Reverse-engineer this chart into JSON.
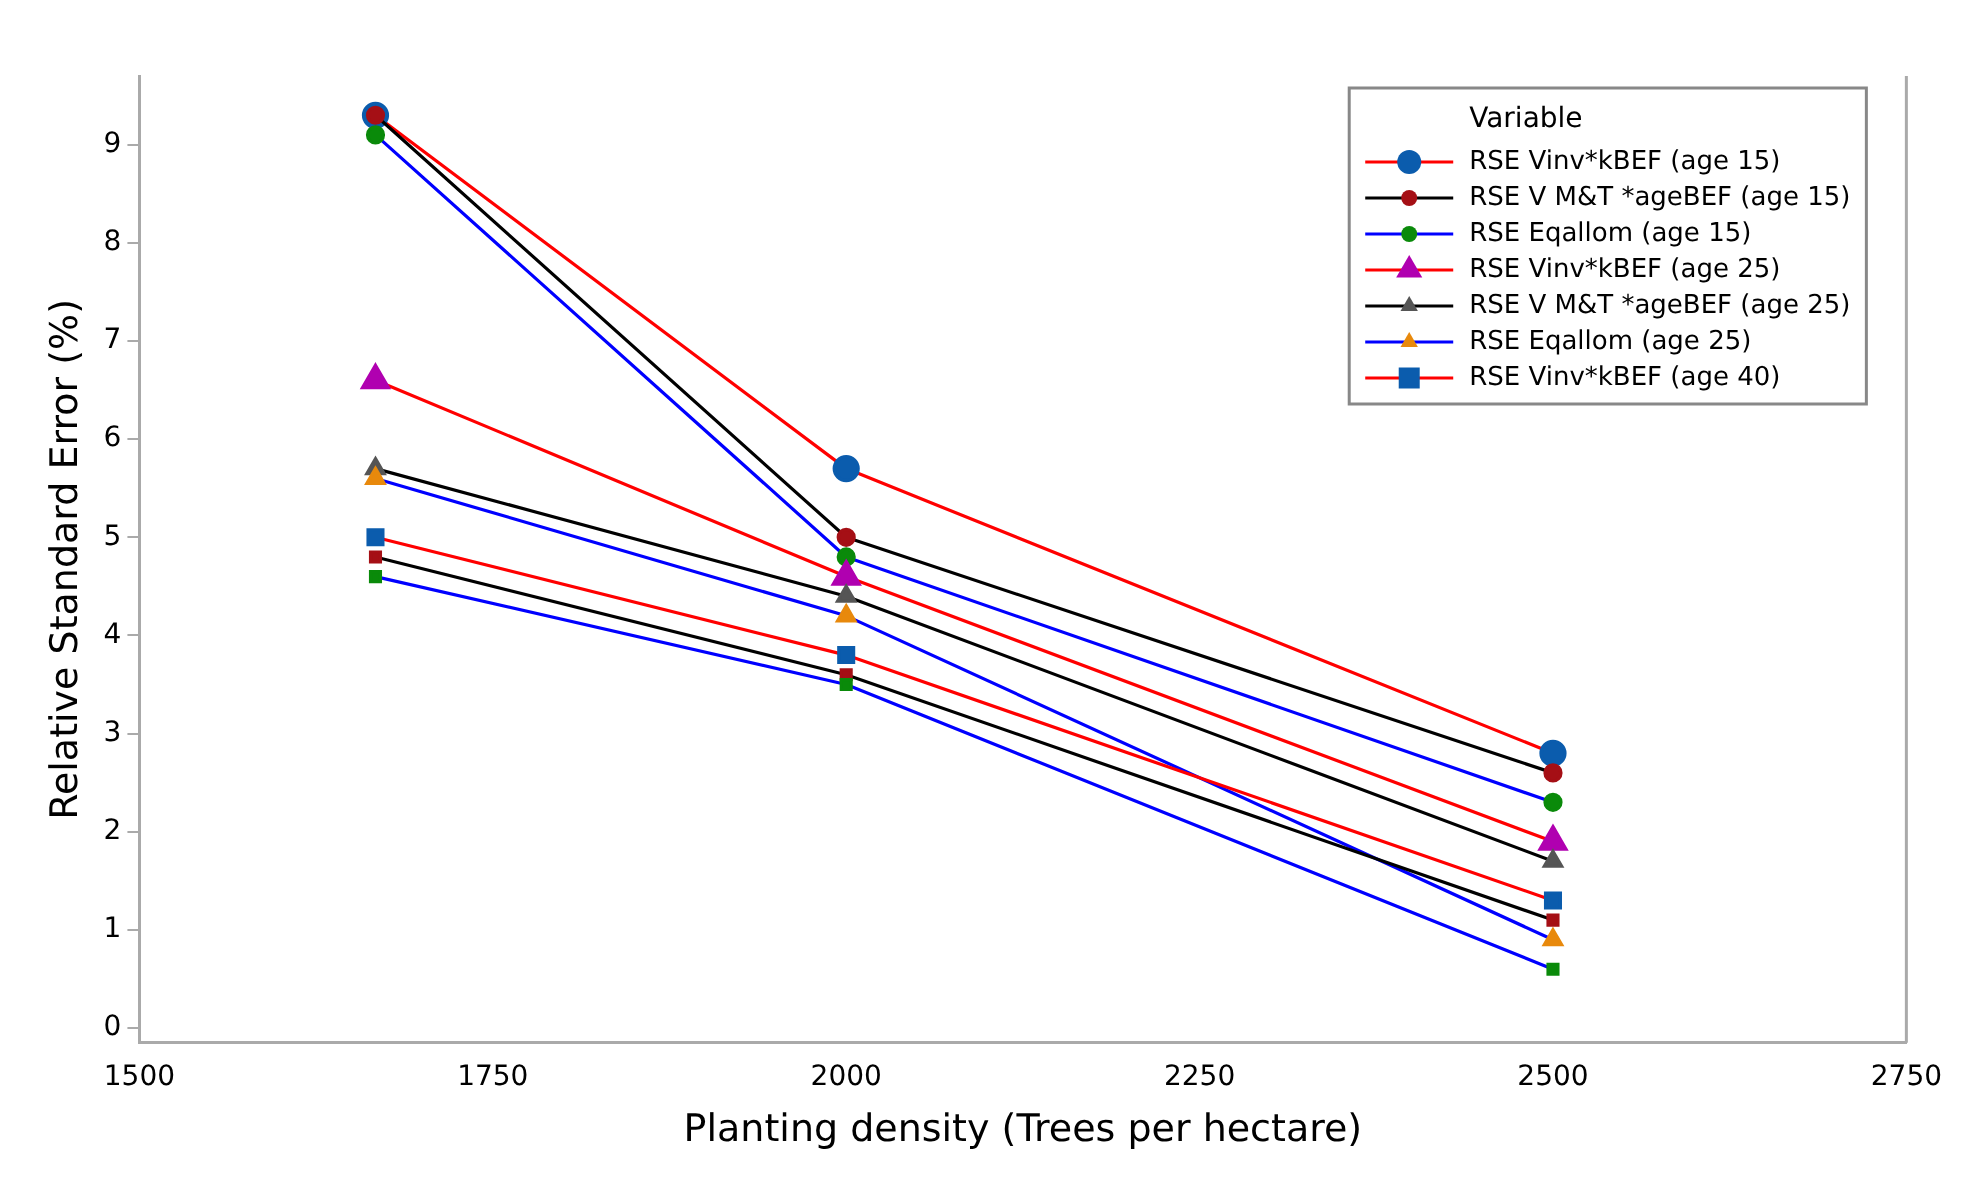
{
  "chart_data": {
    "type": "line",
    "xlabel": "Planting density (Trees per hectare)",
    "ylabel": "Relative Standard Error (%)",
    "legend_title": "Variable",
    "legend": "top right",
    "grid": false,
    "x": [
      1667,
      2000,
      2500
    ],
    "xlim": [
      1500,
      2750
    ],
    "xticks": [
      1500,
      1750,
      2000,
      2250,
      2500,
      2750
    ],
    "ylim": [
      -0.15,
      9.7
    ],
    "yticks": [
      0,
      1,
      2,
      3,
      4,
      5,
      6,
      7,
      8,
      9
    ],
    "series": [
      {
        "name": "RSE Vinv*kBEF (age 15)",
        "color": "#ff0000",
        "marker": "circle",
        "colors": [
          "#0b5cad",
          "#0b5cad",
          "#0b5cad"
        ],
        "values": [
          9.3,
          5.7,
          2.8
        ]
      },
      {
        "name": "RSE V M&T *ageBEF (age 15)",
        "color": "#000000",
        "marker": "circle",
        "colors": [
          "#a50f15",
          "#a50f15",
          "#a50f15"
        ],
        "values": [
          9.3,
          5.0,
          2.6
        ]
      },
      {
        "name": "RSE Eqallom (age 15)",
        "color": "#0000ff",
        "marker": "circle",
        "colors": [
          "#0a8a0a",
          "#0a8a0a",
          "#0a8a0a"
        ],
        "values": [
          9.1,
          4.8,
          2.3
        ]
      },
      {
        "name": "RSE Vinv*kBEF (age 25)",
        "color": "#ff0000",
        "marker": "triangle",
        "colors": [
          "#b000b0",
          "#b000b0",
          "#b000b0"
        ],
        "values": [
          6.6,
          4.6,
          1.9
        ]
      },
      {
        "name": "RSE V M&T *ageBEF (age 25)",
        "color": "#000000",
        "marker": "triangle",
        "colors": [
          "#555555",
          "#555555",
          "#555555"
        ],
        "values": [
          5.7,
          4.4,
          1.7
        ]
      },
      {
        "name": "RSE Eqallom (age 25)",
        "color": "#0000ff",
        "marker": "triangle",
        "colors": [
          "#e8890c",
          "#e8890c",
          "#e8890c"
        ],
        "values": [
          5.6,
          4.2,
          0.9
        ]
      },
      {
        "name": "RSE Vinv*kBEF (age 40)",
        "color": "#ff0000",
        "marker": "square",
        "colors": [
          "#0b5cad",
          "#0b5cad",
          "#0b5cad"
        ],
        "values": [
          5.0,
          3.8,
          1.3
        ]
      },
      {
        "color": "#000000",
        "marker": "square",
        "colors": [
          "#a50f15",
          "#a50f15",
          "#a50f15"
        ],
        "values": [
          4.8,
          3.6,
          1.1
        ]
      },
      {
        "color": "#0000ff",
        "marker": "square",
        "colors": [
          "#0a8a0a",
          "#0a8a0a",
          "#0a8a0a"
        ],
        "values": [
          4.6,
          3.5,
          0.6
        ]
      }
    ]
  }
}
